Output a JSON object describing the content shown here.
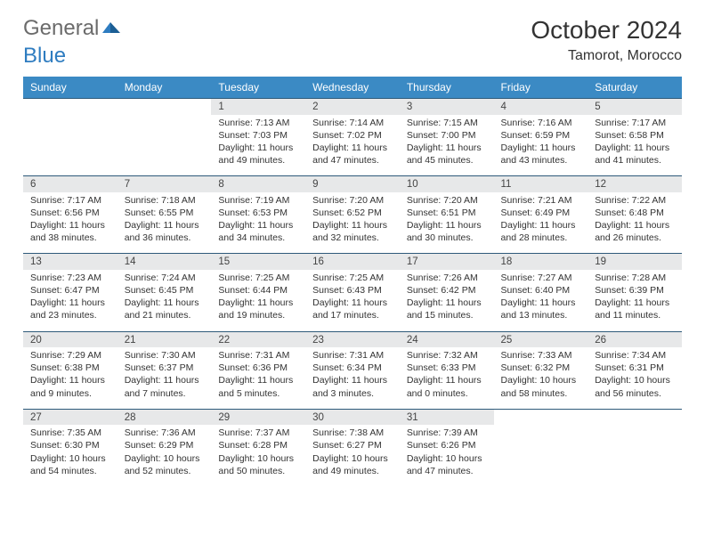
{
  "logo": {
    "part1": "General",
    "part2": "Blue"
  },
  "title": "October 2024",
  "location": "Tamorot, Morocco",
  "colors": {
    "header_bg": "#3b8ac4",
    "daynum_bg": "#e7e8e9",
    "border_top": "#2e5a7a",
    "logo_gray": "#6b6b6b",
    "logo_blue": "#2e7cc0"
  },
  "weekdays": [
    "Sunday",
    "Monday",
    "Tuesday",
    "Wednesday",
    "Thursday",
    "Friday",
    "Saturday"
  ],
  "weeks": [
    [
      null,
      null,
      {
        "n": "1",
        "sr": "7:13 AM",
        "ss": "7:03 PM",
        "dl": "11 hours and 49 minutes."
      },
      {
        "n": "2",
        "sr": "7:14 AM",
        "ss": "7:02 PM",
        "dl": "11 hours and 47 minutes."
      },
      {
        "n": "3",
        "sr": "7:15 AM",
        "ss": "7:00 PM",
        "dl": "11 hours and 45 minutes."
      },
      {
        "n": "4",
        "sr": "7:16 AM",
        "ss": "6:59 PM",
        "dl": "11 hours and 43 minutes."
      },
      {
        "n": "5",
        "sr": "7:17 AM",
        "ss": "6:58 PM",
        "dl": "11 hours and 41 minutes."
      }
    ],
    [
      {
        "n": "6",
        "sr": "7:17 AM",
        "ss": "6:56 PM",
        "dl": "11 hours and 38 minutes."
      },
      {
        "n": "7",
        "sr": "7:18 AM",
        "ss": "6:55 PM",
        "dl": "11 hours and 36 minutes."
      },
      {
        "n": "8",
        "sr": "7:19 AM",
        "ss": "6:53 PM",
        "dl": "11 hours and 34 minutes."
      },
      {
        "n": "9",
        "sr": "7:20 AM",
        "ss": "6:52 PM",
        "dl": "11 hours and 32 minutes."
      },
      {
        "n": "10",
        "sr": "7:20 AM",
        "ss": "6:51 PM",
        "dl": "11 hours and 30 minutes."
      },
      {
        "n": "11",
        "sr": "7:21 AM",
        "ss": "6:49 PM",
        "dl": "11 hours and 28 minutes."
      },
      {
        "n": "12",
        "sr": "7:22 AM",
        "ss": "6:48 PM",
        "dl": "11 hours and 26 minutes."
      }
    ],
    [
      {
        "n": "13",
        "sr": "7:23 AM",
        "ss": "6:47 PM",
        "dl": "11 hours and 23 minutes."
      },
      {
        "n": "14",
        "sr": "7:24 AM",
        "ss": "6:45 PM",
        "dl": "11 hours and 21 minutes."
      },
      {
        "n": "15",
        "sr": "7:25 AM",
        "ss": "6:44 PM",
        "dl": "11 hours and 19 minutes."
      },
      {
        "n": "16",
        "sr": "7:25 AM",
        "ss": "6:43 PM",
        "dl": "11 hours and 17 minutes."
      },
      {
        "n": "17",
        "sr": "7:26 AM",
        "ss": "6:42 PM",
        "dl": "11 hours and 15 minutes."
      },
      {
        "n": "18",
        "sr": "7:27 AM",
        "ss": "6:40 PM",
        "dl": "11 hours and 13 minutes."
      },
      {
        "n": "19",
        "sr": "7:28 AM",
        "ss": "6:39 PM",
        "dl": "11 hours and 11 minutes."
      }
    ],
    [
      {
        "n": "20",
        "sr": "7:29 AM",
        "ss": "6:38 PM",
        "dl": "11 hours and 9 minutes."
      },
      {
        "n": "21",
        "sr": "7:30 AM",
        "ss": "6:37 PM",
        "dl": "11 hours and 7 minutes."
      },
      {
        "n": "22",
        "sr": "7:31 AM",
        "ss": "6:36 PM",
        "dl": "11 hours and 5 minutes."
      },
      {
        "n": "23",
        "sr": "7:31 AM",
        "ss": "6:34 PM",
        "dl": "11 hours and 3 minutes."
      },
      {
        "n": "24",
        "sr": "7:32 AM",
        "ss": "6:33 PM",
        "dl": "11 hours and 0 minutes."
      },
      {
        "n": "25",
        "sr": "7:33 AM",
        "ss": "6:32 PM",
        "dl": "10 hours and 58 minutes."
      },
      {
        "n": "26",
        "sr": "7:34 AM",
        "ss": "6:31 PM",
        "dl": "10 hours and 56 minutes."
      }
    ],
    [
      {
        "n": "27",
        "sr": "7:35 AM",
        "ss": "6:30 PM",
        "dl": "10 hours and 54 minutes."
      },
      {
        "n": "28",
        "sr": "7:36 AM",
        "ss": "6:29 PM",
        "dl": "10 hours and 52 minutes."
      },
      {
        "n": "29",
        "sr": "7:37 AM",
        "ss": "6:28 PM",
        "dl": "10 hours and 50 minutes."
      },
      {
        "n": "30",
        "sr": "7:38 AM",
        "ss": "6:27 PM",
        "dl": "10 hours and 49 minutes."
      },
      {
        "n": "31",
        "sr": "7:39 AM",
        "ss": "6:26 PM",
        "dl": "10 hours and 47 minutes."
      },
      null,
      null
    ]
  ]
}
